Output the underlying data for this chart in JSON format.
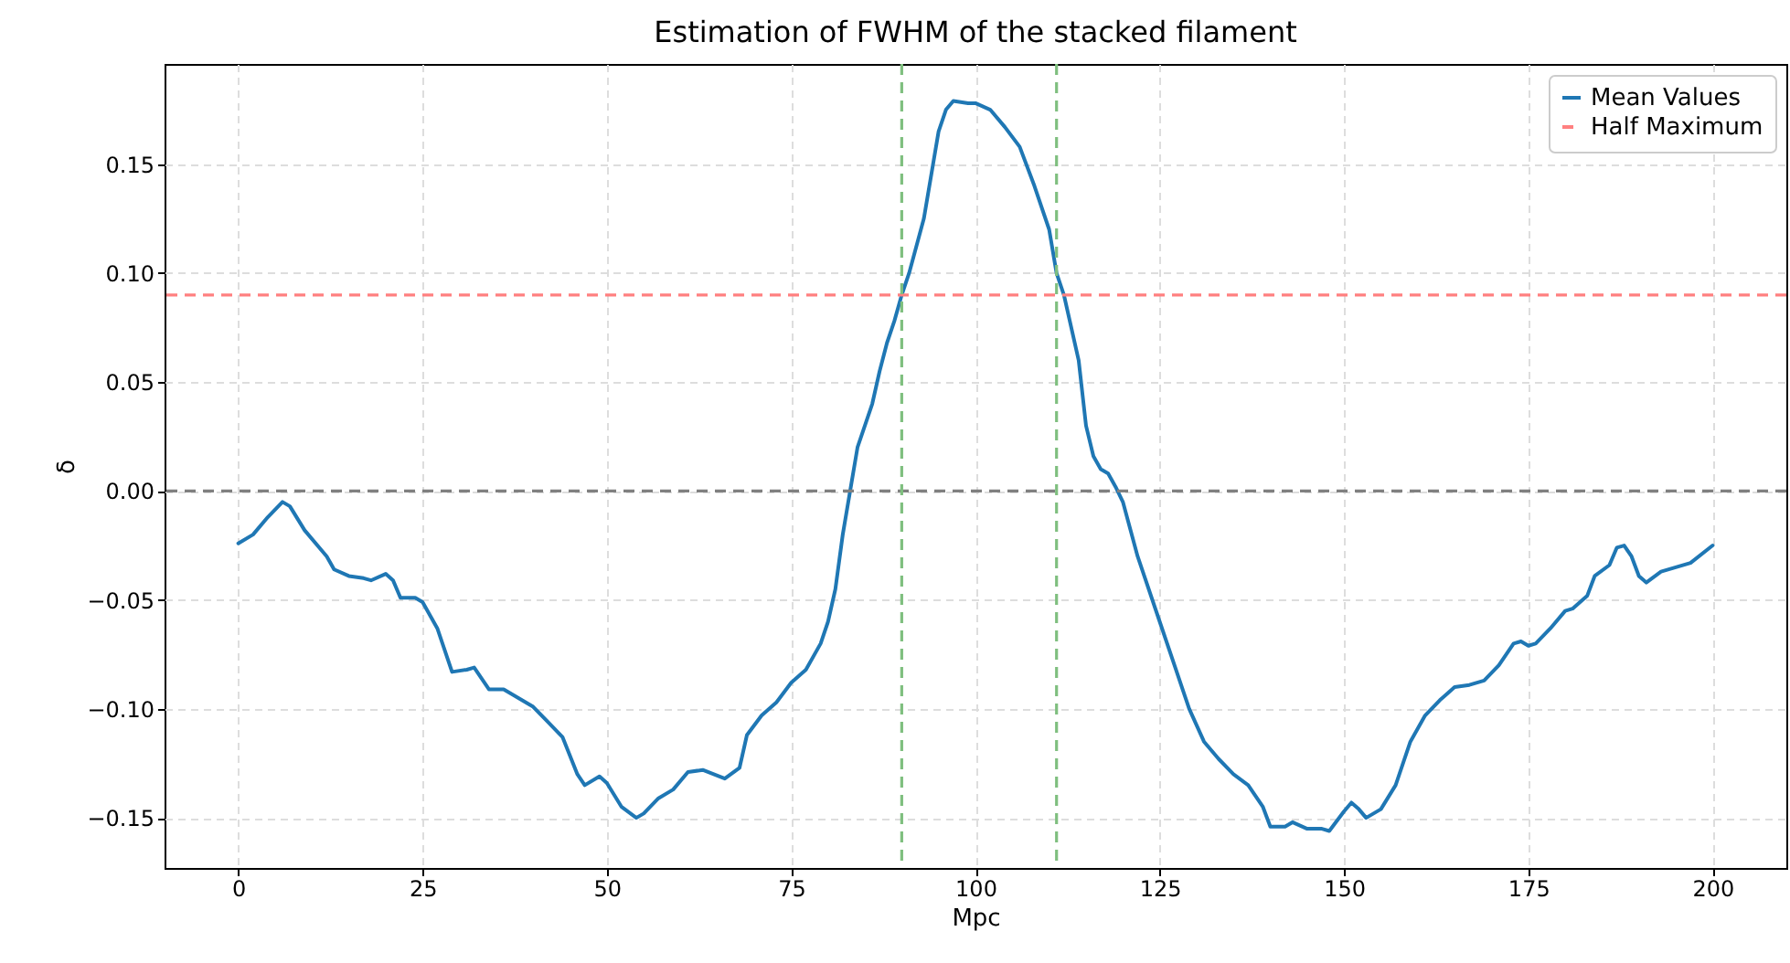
{
  "chart_data": {
    "type": "line",
    "title": "Estimation of FWHM of the stacked filament",
    "xlabel": "Mpc",
    "ylabel": "δ",
    "x": [
      0,
      2,
      4,
      6,
      7,
      9,
      12,
      13,
      15,
      17,
      18,
      20,
      21,
      22,
      24,
      25,
      27,
      29,
      31,
      32,
      34,
      36,
      38,
      40,
      42,
      44,
      46,
      47,
      49,
      50,
      52,
      54,
      55,
      57,
      59,
      61,
      63,
      66,
      68,
      69,
      71,
      73,
      75,
      77,
      79,
      80,
      81,
      82,
      83,
      84,
      86,
      87,
      88,
      89,
      90,
      91,
      93,
      94,
      95,
      96,
      97,
      99,
      100,
      102,
      104,
      106,
      108,
      110,
      111,
      112,
      114,
      115,
      116,
      117,
      118,
      119,
      120,
      122,
      125,
      127,
      129,
      131,
      133,
      135,
      137,
      139,
      140,
      142,
      143,
      145,
      147,
      148,
      150,
      151,
      152,
      153,
      155,
      157,
      159,
      161,
      163,
      165,
      167,
      169,
      171,
      173,
      174,
      175,
      176,
      178,
      180,
      181,
      183,
      184,
      186,
      187,
      188,
      189,
      190,
      191,
      193,
      195,
      197,
      200
    ],
    "series": [
      {
        "name": "Mean Values",
        "color": "#1f77b4",
        "values": [
          -0.024,
          -0.02,
          -0.012,
          -0.005,
          -0.007,
          -0.018,
          -0.03,
          -0.036,
          -0.039,
          -0.04,
          -0.041,
          -0.038,
          -0.041,
          -0.049,
          -0.049,
          -0.051,
          -0.063,
          -0.083,
          -0.082,
          -0.081,
          -0.091,
          -0.091,
          -0.095,
          -0.099,
          -0.106,
          -0.113,
          -0.13,
          -0.135,
          -0.131,
          -0.134,
          -0.145,
          -0.15,
          -0.148,
          -0.141,
          -0.137,
          -0.129,
          -0.128,
          -0.132,
          -0.127,
          -0.112,
          -0.103,
          -0.097,
          -0.088,
          -0.082,
          -0.07,
          -0.06,
          -0.045,
          -0.02,
          0.0,
          0.02,
          0.04,
          0.055,
          0.068,
          0.078,
          0.09,
          0.1,
          0.125,
          0.145,
          0.165,
          0.175,
          0.179,
          0.178,
          0.178,
          0.175,
          0.167,
          0.158,
          0.14,
          0.12,
          0.1,
          0.09,
          0.06,
          0.03,
          0.016,
          0.01,
          0.008,
          0.002,
          -0.005,
          -0.03,
          -0.06,
          -0.08,
          -0.1,
          -0.115,
          -0.123,
          -0.13,
          -0.135,
          -0.145,
          -0.154,
          -0.154,
          -0.152,
          -0.155,
          -0.155,
          -0.156,
          -0.147,
          -0.143,
          -0.146,
          -0.15,
          -0.146,
          -0.135,
          -0.115,
          -0.103,
          -0.096,
          -0.09,
          -0.089,
          -0.087,
          -0.08,
          -0.07,
          -0.069,
          -0.071,
          -0.07,
          -0.063,
          -0.055,
          -0.054,
          -0.048,
          -0.039,
          -0.034,
          -0.026,
          -0.025,
          -0.03,
          -0.039,
          -0.042,
          -0.037,
          -0.035,
          -0.033,
          -0.025
        ]
      }
    ],
    "xlim": [
      -10,
      210
    ],
    "xticks": [
      0,
      25,
      50,
      75,
      100,
      125,
      150,
      175,
      200
    ],
    "ylim": [
      -0.173,
      0.196
    ],
    "yticks": [
      {
        "value": -0.15,
        "label": "−0.15"
      },
      {
        "value": -0.1,
        "label": "−0.10"
      },
      {
        "value": -0.05,
        "label": "−0.05"
      },
      {
        "value": 0,
        "label": "0.00"
      },
      {
        "value": 0.05,
        "label": "0.05"
      },
      {
        "value": 0.1,
        "label": "0.10"
      },
      {
        "value": 0.15,
        "label": "0.15"
      }
    ],
    "ref_lines": [
      {
        "axis": "y",
        "value": 0.09,
        "label": "Half Maximum",
        "color": "#ff8080",
        "line_style": "dashed"
      },
      {
        "axis": "y",
        "value": 0,
        "color": "#808080",
        "line_style": "dashed"
      },
      {
        "axis": "x",
        "value": 90,
        "color": "#7fbf7f",
        "line_style": "dashed"
      },
      {
        "axis": "x",
        "value": 111,
        "color": "#7fbf7f",
        "line_style": "dashed"
      }
    ],
    "grid": true,
    "legend": "top right",
    "line_style": "solid",
    "marker": "none"
  }
}
